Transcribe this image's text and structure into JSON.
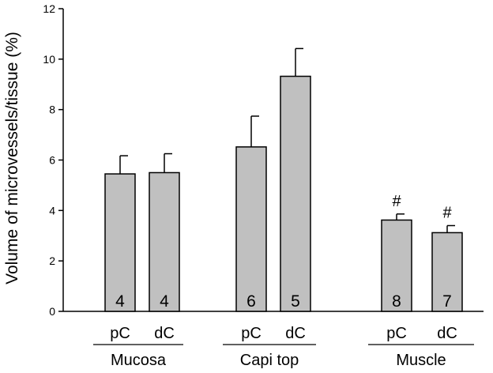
{
  "chart_data": {
    "type": "bar",
    "ylabel": "Volume of microvessels/tissue (%)",
    "ylim": [
      0,
      12
    ],
    "yticks": [
      0,
      2,
      4,
      6,
      8,
      10,
      12
    ],
    "groups": [
      {
        "name": "Mucosa",
        "bars": [
          {
            "label": "pC",
            "value": 5.45,
            "error": 0.72,
            "n": "4",
            "mark": ""
          },
          {
            "label": "dC",
            "value": 5.5,
            "error": 0.75,
            "n": "4",
            "mark": ""
          }
        ]
      },
      {
        "name": "Capi top",
        "bars": [
          {
            "label": "pC",
            "value": 6.52,
            "error": 1.22,
            "n": "6",
            "mark": ""
          },
          {
            "label": "dC",
            "value": 9.32,
            "error": 1.1,
            "n": "5",
            "mark": ""
          }
        ]
      },
      {
        "name": "Muscle",
        "bars": [
          {
            "label": "pC",
            "value": 3.62,
            "error": 0.24,
            "n": "8",
            "mark": "#"
          },
          {
            "label": "dC",
            "value": 3.12,
            "error": 0.28,
            "n": "7",
            "mark": "#"
          }
        ]
      }
    ],
    "bar_color": "#c0c0c0",
    "grid": false
  }
}
